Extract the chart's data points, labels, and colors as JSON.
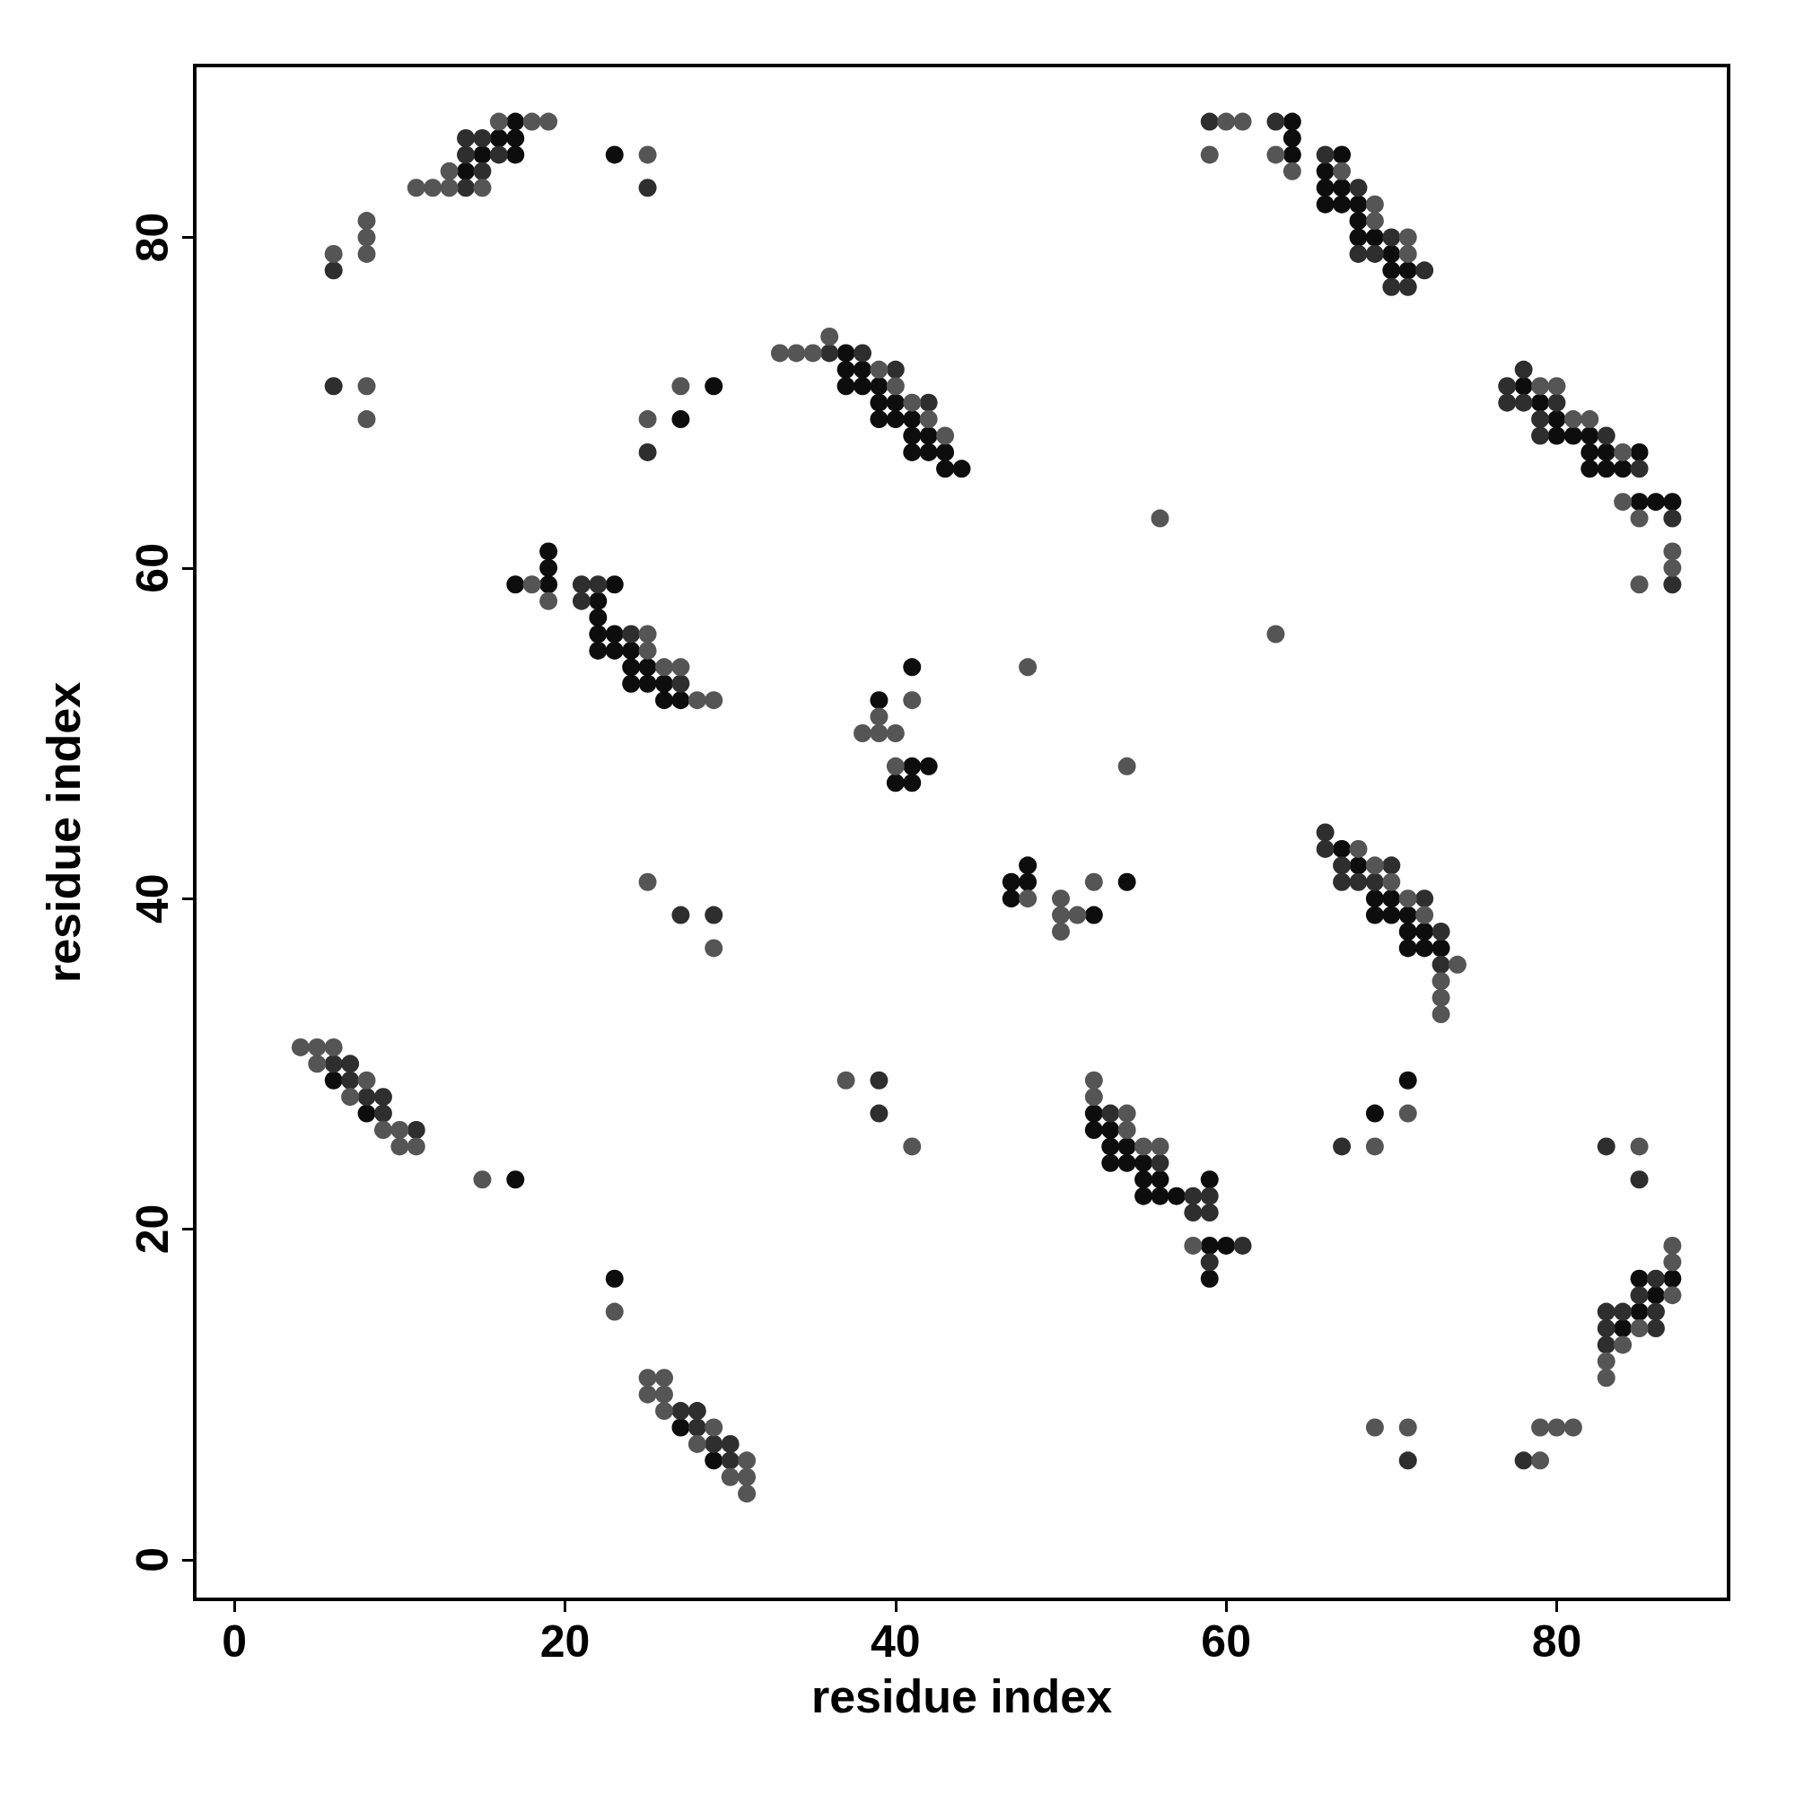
{
  "chart_data": {
    "type": "scatter",
    "xlabel": "residue index",
    "ylabel": "residue index",
    "xlim": [
      -2.4,
      90.4
    ],
    "ylim": [
      -2.4,
      90.4
    ],
    "xticks": [
      0,
      20,
      40,
      60,
      80
    ],
    "yticks": [
      0,
      20,
      40,
      60,
      80
    ],
    "grid": false,
    "marker": "circle",
    "series": [
      {
        "color": "#0d0d0d",
        "x": [
          17,
          16,
          17,
          15,
          17,
          23,
          14,
          29,
          27,
          37,
          37,
          38,
          37,
          38,
          39,
          39,
          40,
          39,
          40,
          41,
          41,
          42,
          41,
          42,
          43,
          43,
          44,
          41,
          39,
          41,
          42,
          40,
          41,
          19,
          19,
          17,
          19,
          23,
          22,
          22,
          22,
          23,
          22,
          23,
          24,
          24,
          25,
          24,
          25,
          26,
          26,
          27,
          48,
          47,
          48,
          54,
          47,
          52,
          52,
          52,
          53,
          53,
          54,
          53,
          54,
          55,
          55,
          56,
          59,
          55,
          56,
          57,
          59,
          60,
          59,
          17,
          23,
          6,
          8,
          27,
          29,
          64,
          64,
          64,
          67,
          66,
          66,
          67,
          66,
          67,
          68,
          68,
          68,
          69,
          70,
          70,
          71,
          78,
          79,
          80,
          80,
          81,
          82,
          82,
          83,
          85,
          82,
          83,
          84,
          85,
          86,
          87,
          67,
          68,
          69,
          70,
          69,
          70,
          71,
          71,
          72,
          71,
          72,
          73,
          71,
          69,
          85,
          87,
          86,
          85,
          84
        ],
        "values": [
          87,
          86,
          86,
          85,
          85,
          85,
          84,
          71,
          69,
          73,
          72,
          72,
          71,
          71,
          71,
          70,
          70,
          69,
          69,
          69,
          68,
          68,
          67,
          67,
          67,
          66,
          66,
          54,
          52,
          48,
          48,
          47,
          47,
          61,
          60,
          59,
          59,
          59,
          58,
          57,
          56,
          56,
          55,
          55,
          55,
          54,
          54,
          53,
          53,
          53,
          52,
          52,
          42,
          41,
          41,
          41,
          40,
          39,
          27,
          26,
          26,
          25,
          25,
          24,
          24,
          24,
          23,
          23,
          23,
          22,
          22,
          22,
          19,
          19,
          17,
          23,
          17,
          29,
          27,
          8,
          6,
          87,
          86,
          85,
          85,
          84,
          83,
          83,
          82,
          82,
          82,
          81,
          80,
          80,
          79,
          78,
          78,
          71,
          70,
          69,
          68,
          68,
          68,
          67,
          67,
          67,
          66,
          66,
          66,
          64,
          64,
          64,
          43,
          42,
          40,
          40,
          39,
          39,
          39,
          38,
          38,
          37,
          37,
          37,
          29,
          27,
          17,
          17,
          16,
          15,
          14
        ]
      },
      {
        "color": "#2e2e2e",
        "x": [
          14,
          15,
          14,
          16,
          15,
          14,
          25,
          6,
          6,
          25,
          36,
          38,
          40,
          42,
          21,
          22,
          21,
          24,
          27,
          27,
          29,
          39,
          39,
          53,
          56,
          58,
          59,
          58,
          59,
          61,
          59,
          6,
          7,
          7,
          8,
          9,
          9,
          11,
          27,
          28,
          28,
          29,
          30,
          30,
          59,
          63,
          66,
          68,
          70,
          68,
          69,
          72,
          70,
          71,
          78,
          77,
          77,
          78,
          80,
          79,
          79,
          83,
          85,
          87,
          87,
          66,
          66,
          67,
          70,
          67,
          68,
          69,
          72,
          73,
          73,
          67,
          83,
          85,
          86,
          85,
          83,
          84,
          86,
          83,
          86,
          83,
          71,
          78
        ],
        "values": [
          86,
          86,
          85,
          85,
          84,
          83,
          83,
          78,
          71,
          67,
          73,
          73,
          72,
          70,
          59,
          59,
          58,
          56,
          53,
          39,
          39,
          29,
          27,
          27,
          24,
          22,
          22,
          21,
          21,
          19,
          18,
          30,
          30,
          29,
          28,
          28,
          27,
          26,
          9,
          9,
          8,
          7,
          7,
          6,
          87,
          87,
          85,
          83,
          80,
          79,
          79,
          78,
          77,
          77,
          72,
          71,
          70,
          70,
          70,
          69,
          68,
          68,
          66,
          63,
          59,
          44,
          43,
          42,
          42,
          41,
          41,
          41,
          40,
          38,
          36,
          25,
          25,
          23,
          17,
          16,
          15,
          15,
          15,
          14,
          14,
          13,
          6,
          6
        ]
      },
      {
        "color": "#555555",
        "x": [
          16,
          18,
          19,
          25,
          13,
          11,
          12,
          13,
          15,
          8,
          8,
          6,
          8,
          8,
          8,
          27,
          25,
          36,
          33,
          34,
          35,
          39,
          40,
          41,
          42,
          43,
          56,
          48,
          41,
          29,
          28,
          39,
          38,
          39,
          40,
          40,
          54,
          18,
          19,
          25,
          25,
          26,
          27,
          52,
          48,
          50,
          50,
          51,
          50,
          25,
          29,
          37,
          41,
          52,
          52,
          54,
          54,
          55,
          56,
          58,
          15,
          23,
          4,
          5,
          6,
          5,
          8,
          7,
          9,
          10,
          10,
          11,
          25,
          26,
          25,
          26,
          26,
          29,
          28,
          31,
          30,
          31,
          31,
          60,
          61,
          59,
          63,
          64,
          67,
          69,
          69,
          71,
          71,
          79,
          80,
          81,
          82,
          84,
          84,
          85,
          87,
          87,
          85,
          63,
          68,
          69,
          70,
          71,
          72,
          74,
          73,
          73,
          73,
          71,
          69,
          85,
          87,
          87,
          87,
          85,
          84,
          83,
          83,
          69,
          71,
          79,
          80,
          81,
          79
        ],
        "values": [
          87,
          87,
          87,
          85,
          84,
          83,
          83,
          83,
          83,
          81,
          80,
          79,
          79,
          71,
          69,
          71,
          69,
          74,
          73,
          73,
          73,
          72,
          71,
          70,
          69,
          68,
          63,
          54,
          52,
          52,
          52,
          51,
          50,
          50,
          50,
          48,
          48,
          59,
          58,
          56,
          55,
          54,
          54,
          41,
          40,
          40,
          39,
          39,
          38,
          41,
          37,
          29,
          25,
          29,
          28,
          27,
          26,
          25,
          25,
          19,
          23,
          15,
          31,
          31,
          31,
          30,
          29,
          28,
          26,
          26,
          25,
          25,
          11,
          11,
          10,
          10,
          9,
          8,
          7,
          6,
          5,
          5,
          4,
          87,
          87,
          85,
          85,
          84,
          84,
          82,
          81,
          80,
          79,
          71,
          71,
          69,
          69,
          67,
          64,
          63,
          61,
          60,
          59,
          56,
          43,
          42,
          41,
          40,
          39,
          36,
          35,
          34,
          33,
          27,
          25,
          25,
          19,
          18,
          16,
          14,
          13,
          12,
          11,
          8,
          8,
          8,
          8,
          8,
          6
        ]
      }
    ]
  }
}
